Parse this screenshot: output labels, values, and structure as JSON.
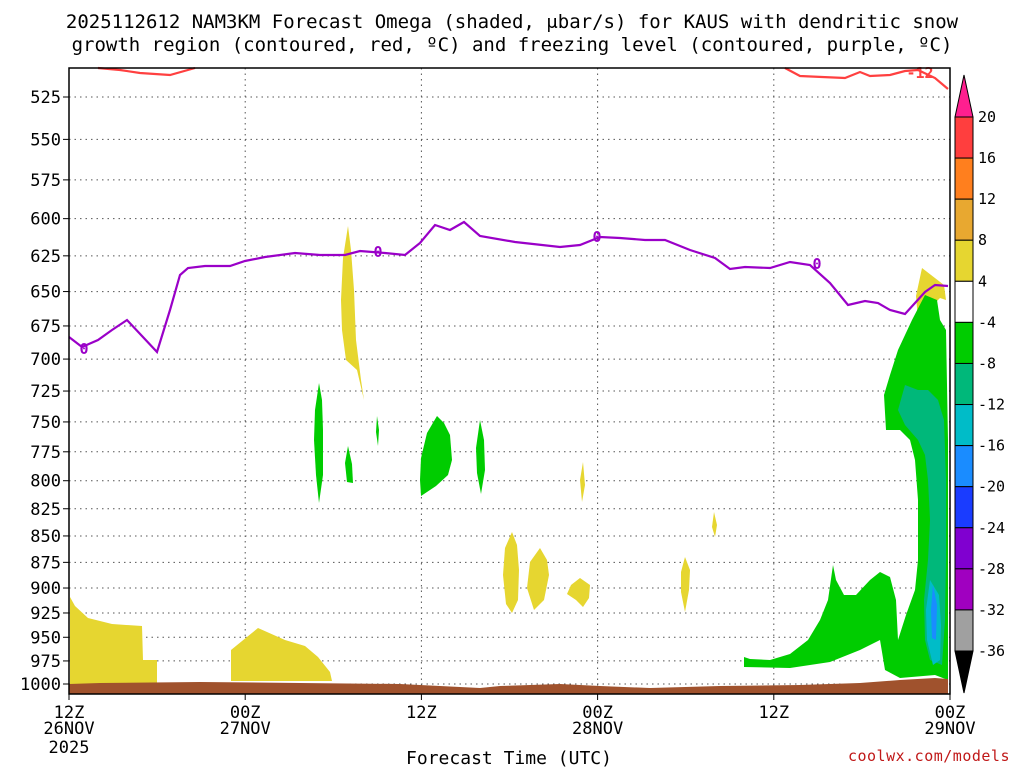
{
  "title": {
    "line1": "2025112612 NAM3KM Forecast Omega (shaded, μbar/s) for KAUS with dendritic snow",
    "line2": "growth region (contoured, red, ºC) and freezing level (contoured, purple, ºC)"
  },
  "xaxis": {
    "label": "Forecast Time (UTC)",
    "ticks": [
      {
        "l1": "12Z",
        "l2": "26NOV",
        "l3": "2025"
      },
      {
        "l1": "00Z",
        "l2": "27NOV",
        "l3": ""
      },
      {
        "l1": "12Z",
        "l2": "",
        "l3": ""
      },
      {
        "l1": "00Z",
        "l2": "28NOV",
        "l3": ""
      },
      {
        "l1": "12Z",
        "l2": "",
        "l3": ""
      },
      {
        "l1": "00Z",
        "l2": "29NOV",
        "l3": ""
      }
    ]
  },
  "yaxis": {
    "ticks": [
      "525",
      "550",
      "575",
      "600",
      "625",
      "650",
      "675",
      "700",
      "725",
      "750",
      "775",
      "800",
      "825",
      "850",
      "875",
      "900",
      "925",
      "950",
      "975",
      "1000"
    ]
  },
  "contour_labels": {
    "freezing_0": "0",
    "dgz_minus12": "-12"
  },
  "colorbar": {
    "labels": [
      "20",
      "16",
      "12",
      "8",
      "4",
      "-4",
      "-8",
      "-12",
      "-16",
      "-20",
      "-24",
      "-28",
      "-32",
      "-36"
    ],
    "colors": [
      "#ff3e3e",
      "#ff7f1e",
      "#e8a830",
      "#e6d630",
      "#ffffff",
      "#00cc00",
      "#00b87a",
      "#00bcc8",
      "#1a8cff",
      "#1a3cff",
      "#8000d0",
      "#a000c0",
      "#a0a0a0"
    ],
    "top_triangle": "#ff1f8f",
    "bottom_triangle": "#000000"
  },
  "credit": "coolwx.com/models",
  "chart_data": {
    "type": "contour",
    "x_range": [
      "2025-11-26T12Z",
      "2025-11-29T00Z"
    ],
    "y_range_mb": [
      510,
      1010
    ],
    "y_scale": "log-pressure, reversed",
    "grid": true,
    "freezing_level_0C_mb": [
      {
        "t": "26NOV 12Z",
        "p": 685
      },
      {
        "t": "26NOV 15Z",
        "p": 676
      },
      {
        "t": "26NOV 18Z",
        "p": 694
      },
      {
        "t": "26NOV 21Z",
        "p": 635
      },
      {
        "t": "27NOV 00Z",
        "p": 632
      },
      {
        "t": "27NOV 06Z",
        "p": 624
      },
      {
        "t": "27NOV 12Z",
        "p": 625
      },
      {
        "t": "27NOV 15Z",
        "p": 604
      },
      {
        "t": "27NOV 18Z",
        "p": 613
      },
      {
        "t": "28NOV 00Z",
        "p": 614
      },
      {
        "t": "28NOV 06Z",
        "p": 618
      },
      {
        "t": "28NOV 12Z",
        "p": 634
      },
      {
        "t": "28NOV 15Z",
        "p": 631
      },
      {
        "t": "28NOV 18Z",
        "p": 663
      },
      {
        "t": "28NOV 21Z",
        "p": 668
      },
      {
        "t": "29NOV 00Z",
        "p": 643
      }
    ],
    "dgz_minus12C_mb": [
      {
        "t": "26NOV 12Z",
        "p": 507
      },
      {
        "t": "26NOV 15Z",
        "p": 512
      },
      {
        "t": "28NOV 14Z",
        "p": 507
      },
      {
        "t": "28NOV 18Z",
        "p": 512
      },
      {
        "t": "28NOV 21Z",
        "p": 510
      },
      {
        "t": "29NOV 00Z",
        "p": 518
      }
    ],
    "omega_units": "μbar/s",
    "omega_regions": [
      {
        "range": "4 to 8",
        "approx_times": "26NOV 12Z-18Z",
        "levels_mb": "910-1000"
      },
      {
        "range": "4 to 8",
        "approx_times": "26NOV 23Z-27NOV 06Z",
        "levels_mb": "945-1000"
      },
      {
        "range": "4 to 8",
        "approx_times": "27NOV 07Z-08Z",
        "levels_mb": "605-730"
      },
      {
        "range": "-4 to -8",
        "approx_times": "27NOV 12Z-14Z",
        "levels_mb": "750-810"
      },
      {
        "range": "4 to 8",
        "approx_times": "27NOV 19Z-23Z",
        "levels_mb": "850-915"
      },
      {
        "range": "-4 to -8",
        "approx_times": "28NOV 12Z-29NOV 00Z",
        "levels_mb": "640-990"
      },
      {
        "range": "-8 to -12",
        "approx_times": "28NOV 22Z-29NOV 00Z",
        "levels_mb": "700-975"
      },
      {
        "range": "-12 to -16",
        "approx_times": "28NOV 23Z-29NOV 00Z",
        "levels_mb": "900-975"
      }
    ]
  }
}
